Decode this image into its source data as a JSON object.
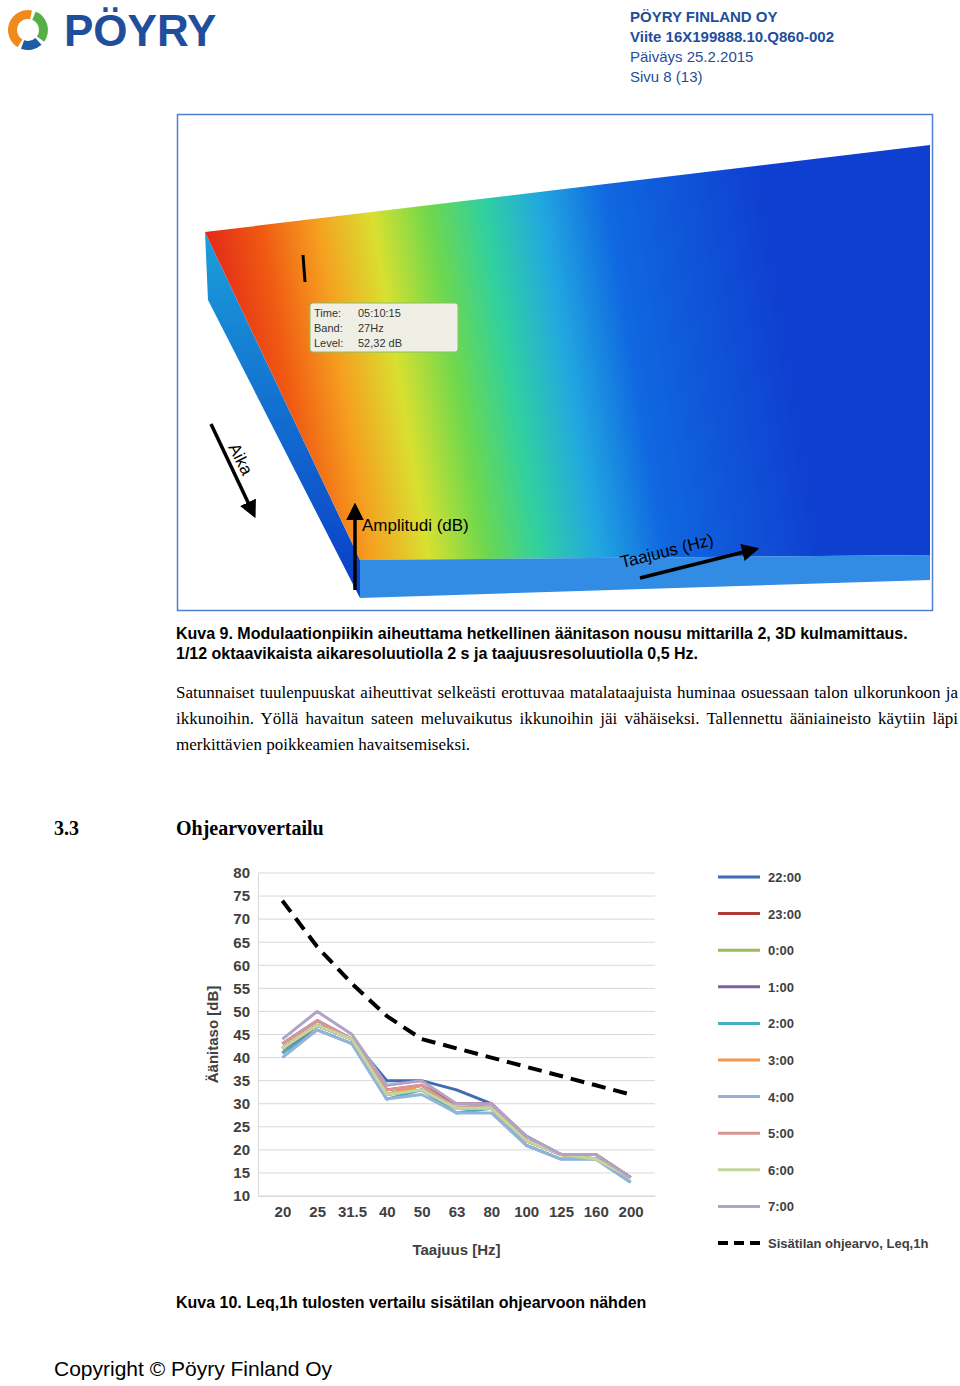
{
  "header": {
    "logo": "PÖYRY",
    "company": "PÖYRY FINLAND OY",
    "reference": "Viite 16X199888.10.Q860-002",
    "date": "Päiväys 25.2.2015",
    "page": "Sivu 8 (13)"
  },
  "figure9": {
    "tooltip": {
      "time": "Time:",
      "time_value": "05:10:15",
      "band": "Band:",
      "band_value": "27Hz",
      "level": "Level:",
      "level_value": "52,32 dB"
    },
    "axis_time": "Aika",
    "axis_amplitude": "Amplitudi (dB)",
    "axis_frequency": "Taajuus (Hz)",
    "caption": "Kuva 9. Modulaationpiikin aiheuttama hetkellinen äänitason nousu mittarilla 2, 3D kulmamittaus. 1/12 oktaavikaista aikaresoluutiolla 2 s ja taajuusresoluutiolla 0,5 Hz."
  },
  "paragraph": "Satunnaiset tuulenpuuskat aiheuttivat selkeästi erottuvaa matalataajuista huminaa osuessaan talon ulkorunkoon ja ikkunoihin. Yöllä havaitun sateen meluvaikutus ikkunoihin jäi vähäiseksi. Tallennettu ääniaineisto käytiin läpi merkittävien poikkeamien havaitsemiseksi.",
  "section": {
    "number": "3.3",
    "title": "Ohjearvovertailu"
  },
  "chart_data": {
    "type": "line",
    "x_label": "Taajuus [Hz]",
    "y_label": "Äänitaso [dB]",
    "categories": [
      "20",
      "25",
      "31.5",
      "40",
      "50",
      "63",
      "80",
      "100",
      "125",
      "160",
      "200"
    ],
    "ylim": [
      10,
      80
    ],
    "yticks": [
      10,
      15,
      20,
      25,
      30,
      35,
      40,
      45,
      50,
      55,
      60,
      65,
      70,
      75,
      80
    ],
    "grid": true,
    "legend": "right",
    "series": [
      {
        "name": "22:00",
        "color": "#3f6db3",
        "values": [
          43,
          48,
          44,
          35,
          35,
          33,
          30,
          23,
          19,
          19,
          14
        ]
      },
      {
        "name": "23:00",
        "color": "#b03c3a",
        "values": [
          42,
          47,
          44,
          33,
          34,
          30,
          30,
          22,
          19,
          19,
          14
        ]
      },
      {
        "name": "0:00",
        "color": "#9bbb59",
        "values": [
          42,
          47,
          44,
          32,
          34,
          29,
          29,
          22,
          19,
          18,
          14
        ]
      },
      {
        "name": "1:00",
        "color": "#7f60a0",
        "values": [
          41,
          47,
          44,
          32,
          33,
          29,
          29,
          22,
          19,
          18,
          14
        ]
      },
      {
        "name": "2:00",
        "color": "#4bacc6",
        "values": [
          41,
          46,
          43,
          31,
          33,
          28,
          29,
          21,
          18,
          18,
          13
        ]
      },
      {
        "name": "3:00",
        "color": "#f79646",
        "values": [
          42,
          47,
          44,
          32,
          34,
          29,
          29,
          22,
          19,
          18,
          14
        ]
      },
      {
        "name": "4:00",
        "color": "#95b3d7",
        "values": [
          40,
          46,
          43,
          31,
          32,
          28,
          28,
          21,
          18,
          18,
          13
        ]
      },
      {
        "name": "5:00",
        "color": "#d99694",
        "values": [
          43,
          48,
          44,
          33,
          34,
          29,
          30,
          22,
          19,
          19,
          14
        ]
      },
      {
        "name": "6:00",
        "color": "#c3d69b",
        "values": [
          42,
          47,
          44,
          32,
          33,
          29,
          29,
          22,
          19,
          18,
          14
        ]
      },
      {
        "name": "7:00",
        "color": "#b3a2c7",
        "values": [
          44,
          50,
          45,
          34,
          35,
          30,
          30,
          23,
          19,
          19,
          14
        ]
      },
      {
        "name": "Sisätilan ohjearvo, Leq,1h",
        "color": "#000000",
        "line_style": "dashed",
        "values": [
          74,
          64,
          56,
          49,
          44,
          42,
          40,
          38,
          36,
          34,
          32
        ]
      }
    ]
  },
  "figure10_caption": "Kuva 10. Leq,1h tulosten vertailu sisätilan ohjearvoon nähden",
  "footer": "Copyright © Pöyry Finland Oy"
}
